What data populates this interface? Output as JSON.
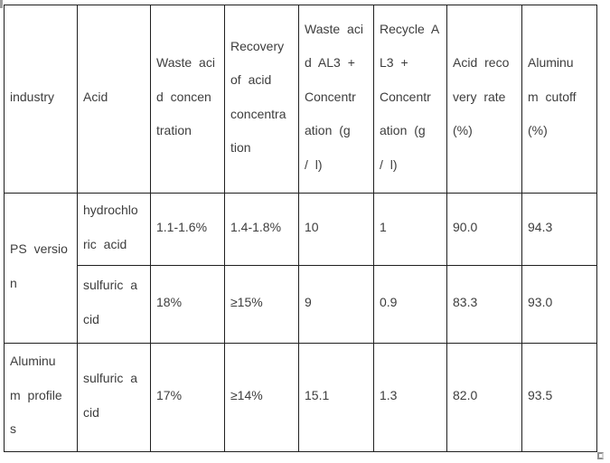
{
  "colors": {
    "background": "#ffffff",
    "text": "#3d3d3d",
    "table_border": "#1f1f1f",
    "corner_artifact": "#909090"
  },
  "table": {
    "columns_full": [
      "industry",
      "Acid",
      "Waste acid concentration",
      "Recovery of acid concentration",
      "Waste acid AL3 + Concentration (g / l)",
      "Recycle AL3 + Concentration (g / l)",
      "Acid recovery rate (%)",
      "Aluminum cutoff (%)"
    ],
    "header": [
      {
        "lines": [
          "industry"
        ]
      },
      {
        "lines": [
          "Acid"
        ]
      },
      {
        "lines": [
          "Waste aci",
          "d concen",
          "tration"
        ]
      },
      {
        "lines": [
          "Recovery",
          "of acid",
          "concentra",
          "tion"
        ]
      },
      {
        "lines": [
          "Waste aci",
          "d AL3 +",
          "Concentr",
          "ation (g",
          "/ l)"
        ]
      },
      {
        "lines": [
          "Recycle A",
          "L3 +",
          "Concentr",
          "ation (g",
          "/ l)"
        ]
      },
      {
        "lines": [
          "Acid reco",
          "very rate",
          "(%)"
        ]
      },
      {
        "lines": [
          "Aluminu",
          "m cutoff",
          "(%)"
        ]
      }
    ],
    "rows": [
      {
        "industry": [
          "PS versio",
          "n"
        ],
        "acid": [
          "hydrochlo",
          "ric acid"
        ],
        "waste_acid_concentration": [
          "1.1-1.6%"
        ],
        "recovery_of_acid_concentration": [
          "1.4-1.8%"
        ],
        "waste_acid_al3_concentration": [
          "10"
        ],
        "recycle_al3_concentration": [
          "1"
        ],
        "acid_recovery_rate": [
          "90.0"
        ],
        "aluminum_cutoff": [
          "94.3"
        ]
      },
      {
        "acid": [
          "sulfuric a",
          "cid"
        ],
        "waste_acid_concentration": [
          "18%"
        ],
        "recovery_of_acid_concentration": [
          "≥15%"
        ],
        "waste_acid_al3_concentration": [
          "9"
        ],
        "recycle_al3_concentration": [
          "0.9"
        ],
        "acid_recovery_rate": [
          "83.3"
        ],
        "aluminum_cutoff": [
          "93.0"
        ]
      },
      {
        "industry": [
          "Aluminu",
          "m profile",
          "s"
        ],
        "acid": [
          "sulfuric a",
          "cid"
        ],
        "waste_acid_concentration": [
          "17%"
        ],
        "recovery_of_acid_concentration": [
          "≥14%"
        ],
        "waste_acid_al3_concentration": [
          "15.1"
        ],
        "recycle_al3_concentration": [
          "1.3"
        ],
        "acid_recovery_rate": [
          "82.0"
        ],
        "aluminum_cutoff": [
          "93.5"
        ]
      }
    ]
  }
}
